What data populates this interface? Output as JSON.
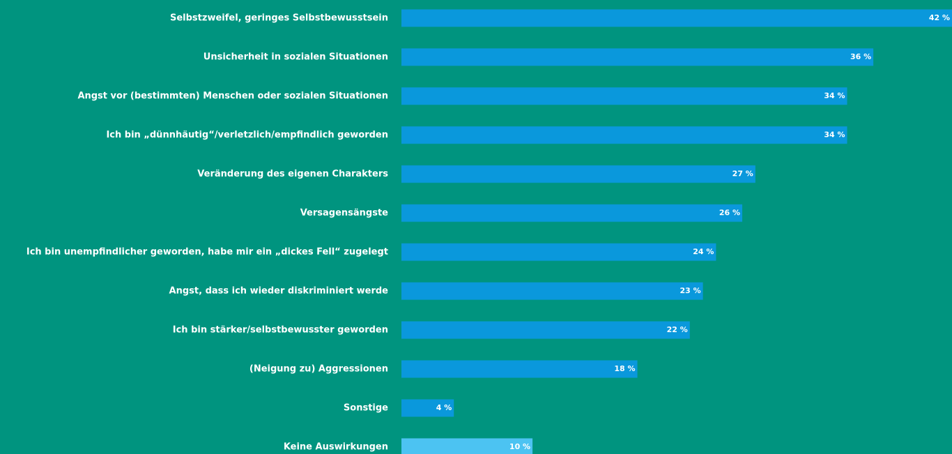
{
  "chart_data": {
    "type": "barh",
    "categories": [
      "Selbstzweifel, geringes Selbstbewusstsein",
      "Unsicherheit in sozialen Situationen",
      "Angst vor (bestimmten) Menschen oder sozialen Situationen",
      "Ich bin „dünnhäutig“/verletzlich/empfindlich geworden",
      "Veränderung des eigenen Charakters",
      "Versagensängste",
      "Ich bin unempfindlicher geworden, habe mir ein „dickes Fell“ zugelegt",
      "Angst, dass ich wieder diskriminiert werde",
      "Ich bin stärker/selbstbewusster geworden",
      "(Neigung zu) Aggressionen",
      "Sonstige",
      "Keine Auswirkungen"
    ],
    "values": [
      42,
      36,
      34,
      34,
      27,
      26,
      24,
      23,
      22,
      18,
      4,
      10
    ],
    "value_labels": [
      "42 %",
      "36 %",
      "34 %",
      "34 %",
      "27 %",
      "26 %",
      "24 %",
      "23 %",
      "22 %",
      "18 %",
      "4 %",
      "10 %"
    ],
    "colors": [
      "#0a98dc",
      "#0a98dc",
      "#0a98dc",
      "#0a98dc",
      "#0a98dc",
      "#0a98dc",
      "#0a98dc",
      "#0a98dc",
      "#0a98dc",
      "#0a98dc",
      "#0a98dc",
      "#4cc3f2"
    ]
  }
}
